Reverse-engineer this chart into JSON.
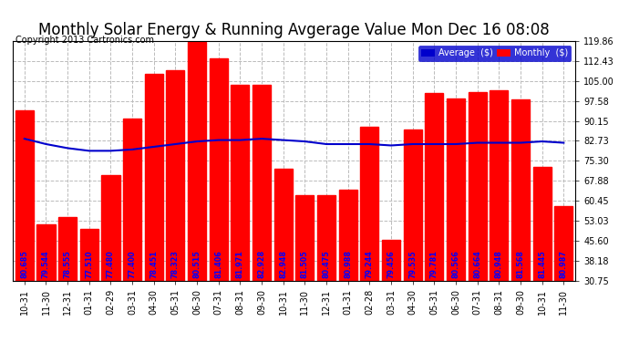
{
  "title": "Monthly Solar Energy & Running Avgerage Value Mon Dec 16 08:08",
  "copyright": "Copyright 2013 Cartronics.com",
  "categories": [
    "10-31",
    "11-30",
    "12-31",
    "01-31",
    "02-29",
    "03-31",
    "04-30",
    "05-31",
    "06-30",
    "07-31",
    "08-31",
    "09-30",
    "10-31",
    "11-30",
    "12-31",
    "01-31",
    "02-28",
    "03-31",
    "04-30",
    "05-31",
    "06-30",
    "07-31",
    "08-31",
    "09-30",
    "10-31",
    "11-30"
  ],
  "bar_values": [
    94.0,
    51.5,
    54.5,
    50.0,
    70.0,
    91.0,
    107.5,
    109.0,
    119.5,
    113.5,
    103.5,
    103.5,
    72.5,
    62.5,
    62.5,
    64.5,
    88.0,
    46.0,
    87.0,
    100.5,
    98.5,
    101.0,
    101.5,
    98.0,
    73.0,
    58.5
  ],
  "bar_labels": [
    "80.685",
    "79.544",
    "78.555",
    "77.510",
    "77.480",
    "77.400",
    "78.451",
    "78.323",
    "80.515",
    "81.406",
    "81.971",
    "82.928",
    "82.948",
    "81.505",
    "80.475",
    "80.988",
    "79.244",
    "79.456",
    "79.535",
    "79.781",
    "80.566",
    "80.664",
    "80.948",
    "81.568",
    "81.445",
    "80.987"
  ],
  "avg_values": [
    83.5,
    81.5,
    80.0,
    79.0,
    79.0,
    79.5,
    80.5,
    81.5,
    82.5,
    83.0,
    83.0,
    83.5,
    83.0,
    82.5,
    81.5,
    81.5,
    81.5,
    81.0,
    81.5,
    81.5,
    81.5,
    82.0,
    82.0,
    82.0,
    82.5,
    82.0
  ],
  "bar_color": "#ff0000",
  "avg_color": "#0000cc",
  "label_color": "#0000ff",
  "background_color": "#ffffff",
  "grid_color": "#bbbbbb",
  "ylim_min": 30.75,
  "ylim_max": 119.86,
  "yticks": [
    30.75,
    38.18,
    45.6,
    53.03,
    60.45,
    67.88,
    75.3,
    82.73,
    90.15,
    97.58,
    105.0,
    112.43,
    119.86
  ],
  "legend_avg_label": "Average  ($)",
  "legend_monthly_label": "Monthly  ($)",
  "title_fontsize": 12,
  "copyright_fontsize": 7,
  "tick_fontsize": 7,
  "label_fontsize": 5.8
}
